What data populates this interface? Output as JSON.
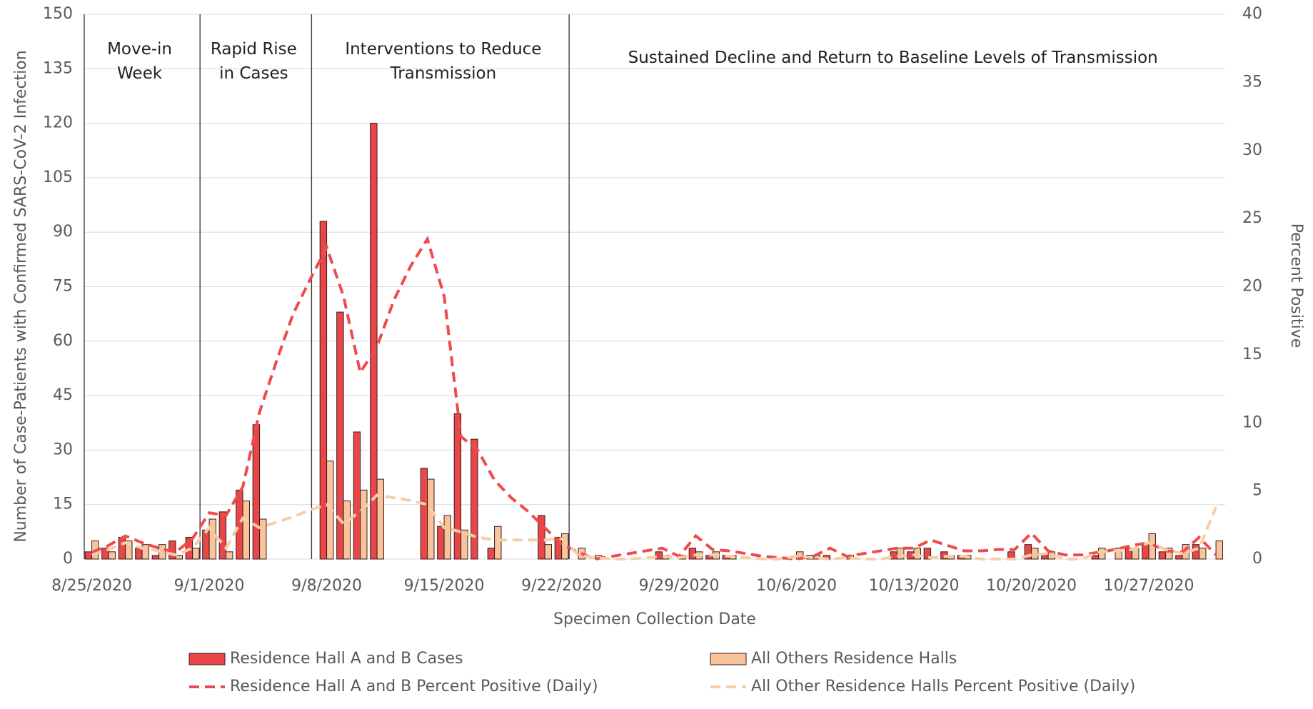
{
  "chart_data": {
    "type": "bar",
    "xlabel": "Specimen Collection Date",
    "ylabel": "Number of Case-Patients with Confirmed SARS-CoV-2 Infection",
    "y2label": "Percent Positive",
    "categories": [
      "8/25/2020",
      null,
      null,
      null,
      null,
      null,
      null,
      "9/1/2020",
      null,
      null,
      null,
      null,
      null,
      null,
      "9/8/2020",
      null,
      null,
      null,
      null,
      null,
      null,
      "9/15/2020",
      null,
      null,
      null,
      null,
      null,
      null,
      "9/22/2020",
      null,
      null,
      null,
      null,
      null,
      null,
      "9/29/2020",
      null,
      null,
      null,
      null,
      null,
      null,
      "10/6/2020",
      null,
      null,
      null,
      null,
      null,
      null,
      "10/13/2020",
      null,
      null,
      null,
      null,
      null,
      null,
      "10/20/2020",
      null,
      null,
      null,
      null,
      null,
      null,
      "10/27/2020",
      null,
      null,
      null,
      null
    ],
    "ylim": [
      0,
      150
    ],
    "yticks": [
      0,
      15,
      30,
      45,
      60,
      75,
      90,
      105,
      120,
      135,
      150
    ],
    "y2lim": [
      0,
      40
    ],
    "y2ticks": [
      0,
      5,
      10,
      15,
      20,
      25,
      30,
      35,
      40
    ],
    "grid": true,
    "annotations": [
      "Move-in Week",
      "Rapid Rise in Cases",
      "Interventions to Reduce Transmission",
      "Sustained Decline and Return to Baseline Levels of Transmission"
    ],
    "series": [
      {
        "name": "Residence Hall A and B Cases",
        "type": "bar",
        "color": "#e8474a",
        "values": [
          2,
          3,
          6,
          3,
          1,
          5,
          6,
          8,
          13,
          19,
          37,
          0,
          0,
          0,
          93,
          68,
          35,
          120,
          0,
          0,
          25,
          9,
          40,
          33,
          3,
          0,
          0,
          12,
          6,
          0,
          0,
          0,
          0,
          0,
          2,
          0,
          3,
          1,
          1,
          0,
          0,
          0,
          0,
          1,
          1,
          0,
          0,
          0,
          2,
          2,
          3,
          2,
          1,
          0,
          0,
          2,
          4,
          1,
          0,
          0,
          1,
          0,
          3,
          4,
          2,
          1,
          4,
          0
        ]
      },
      {
        "name": "All Others Residence Halls",
        "type": "bar",
        "color": "#f8c49c",
        "values": [
          5,
          2,
          5,
          4,
          4,
          1,
          3,
          11,
          2,
          16,
          11,
          0,
          0,
          0,
          27,
          16,
          19,
          22,
          0,
          0,
          22,
          12,
          8,
          0,
          9,
          0,
          0,
          4,
          7,
          3,
          1,
          0,
          0,
          0,
          1,
          1,
          2,
          2,
          1,
          0,
          0,
          0,
          2,
          1,
          0,
          1,
          0,
          0,
          3,
          3,
          0,
          1,
          1,
          0,
          0,
          0,
          3,
          2,
          0,
          0,
          3,
          3,
          3,
          7,
          3,
          4,
          3,
          5
        ]
      },
      {
        "name": "Residence Hall A and B Percent Positive (Daily)",
        "type": "line",
        "axis": "y2",
        "dashed": true,
        "color": "#ef4b4b",
        "values": [
          0.5,
          1.0,
          1.7,
          1.2,
          0.8,
          0.5,
          1.5,
          3.4,
          3.2,
          5.3,
          10.8,
          14.5,
          18,
          20.5,
          22.9,
          19.3,
          13.7,
          15.6,
          19,
          21.5,
          23.5,
          19.3,
          9,
          8,
          5.8,
          4.5,
          3.5,
          2.3,
          1.1,
          0.5,
          0,
          0.2,
          0.4,
          0.6,
          0.8,
          0.2,
          1.7,
          0.7,
          0.6,
          0.4,
          0.2,
          0.1,
          0,
          0.2,
          0.8,
          0.2,
          0.4,
          0.6,
          0.8,
          0.8,
          1.4,
          1,
          0.6,
          0.6,
          0.7,
          0.7,
          1.9,
          0.6,
          0.3,
          0.3,
          0.5,
          0.7,
          1,
          1.2,
          0.6,
          0.5,
          1.6,
          0.3
        ]
      },
      {
        "name": "All Other Residence Halls Percent Positive (Daily)",
        "type": "line",
        "axis": "y2",
        "dashed": true,
        "color": "#f8cda6",
        "values": [
          0.3,
          0.7,
          1.2,
          0.8,
          0.6,
          0.3,
          0.8,
          2.3,
          0.8,
          3.0,
          2.3,
          2.7,
          3.1,
          3.6,
          4.0,
          2.6,
          3.5,
          4.7,
          4.5,
          4.3,
          4.0,
          2.3,
          2.0,
          1.6,
          1.4,
          1.4,
          1.4,
          1.4,
          1.5,
          0.3,
          0.1,
          0,
          0,
          0.1,
          0.2,
          0.1,
          0.3,
          0.3,
          0.2,
          0.1,
          0,
          0,
          0.2,
          0.1,
          0,
          0.1,
          0,
          0,
          0.2,
          0.3,
          0.1,
          0.2,
          0.2,
          0,
          0,
          0,
          0.3,
          0.4,
          0,
          0,
          0.5,
          0.6,
          0.7,
          1.2,
          0.7,
          0.4,
          0.8,
          3.8
        ]
      }
    ]
  }
}
